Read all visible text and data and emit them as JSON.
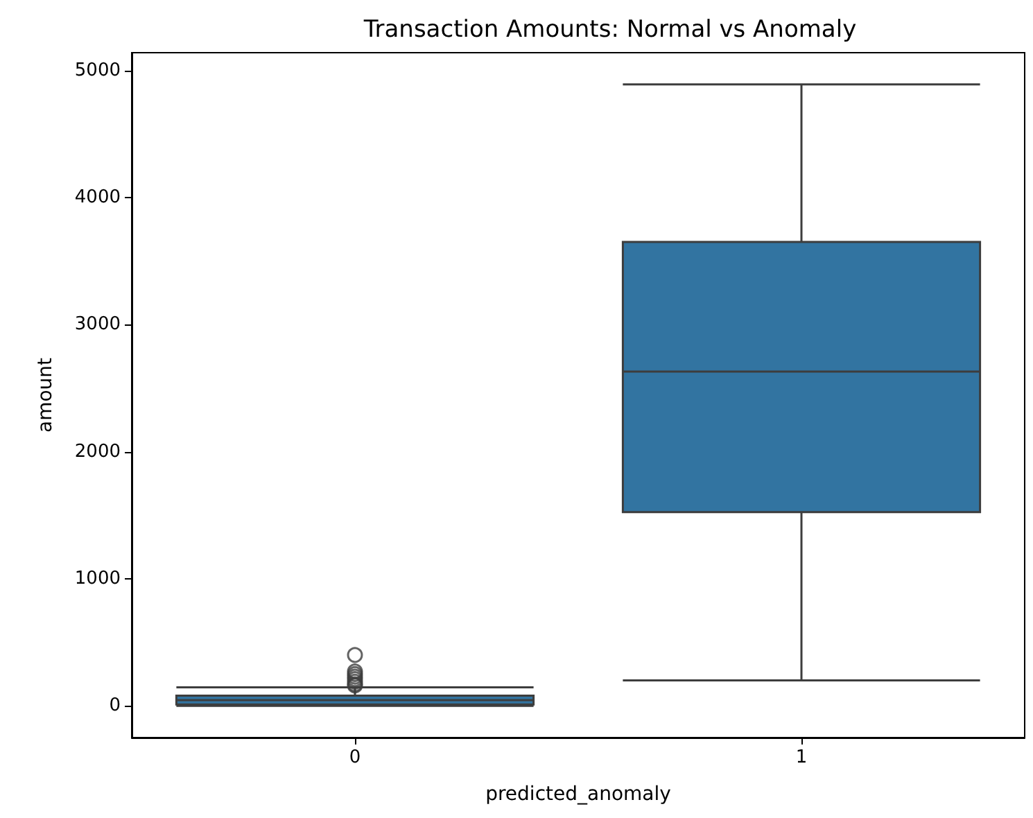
{
  "chart_data": {
    "type": "box",
    "title": "Transaction Amounts: Normal vs Anomaly",
    "xlabel": "predicted_anomaly",
    "ylabel": "amount",
    "categories": [
      "0",
      "1"
    ],
    "series": [
      {
        "color": "#3274a1",
        "boxes": [
          {
            "low": 0,
            "q1": 10,
            "median": 45,
            "q3": 80,
            "high": 145,
            "outliers": [
              160,
              170,
              190,
              210,
              230,
              250,
              270,
              400
            ]
          },
          {
            "low": 200,
            "q1": 1525,
            "median": 2630,
            "q3": 3650,
            "high": 4890
          }
        ]
      }
    ],
    "ylim": [
      -250,
      5140
    ],
    "yticks": [
      0,
      1000,
      2000,
      3000,
      4000,
      5000
    ],
    "grid": false
  }
}
